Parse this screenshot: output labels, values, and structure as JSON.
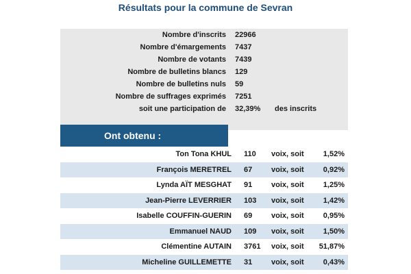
{
  "header": {
    "title": "Résultats pour la commune de Sevran"
  },
  "stats": {
    "rows": [
      {
        "label": "Nombre d'inscrits",
        "value": "22966",
        "suffix": ""
      },
      {
        "label": "Nombre d'émargements",
        "value": "7437",
        "suffix": ""
      },
      {
        "label": "Nombre de votants",
        "value": "7439",
        "suffix": ""
      },
      {
        "label": "Nombre de bulletins blancs",
        "value": "129",
        "suffix": ""
      },
      {
        "label": "Nombre de bulletins nuls",
        "value": "59",
        "suffix": ""
      },
      {
        "label": "Nombre de suffrages exprimés",
        "value": "7251",
        "suffix": ""
      },
      {
        "label": "soit une participation de",
        "value": "32,39%",
        "suffix": "des inscrits"
      }
    ]
  },
  "results": {
    "header": "Ont obtenu :",
    "rows": [
      {
        "name": "Ton Tona KHUL",
        "votes": "110",
        "word": "voix, soit",
        "pct": "1,52%"
      },
      {
        "name": "François MERETREL",
        "votes": "67",
        "word": "voix, soit",
        "pct": "0,92%"
      },
      {
        "name": "Lynda AÏT MESGHAT",
        "votes": "91",
        "word": "voix, soit",
        "pct": "1,25%"
      },
      {
        "name": "Jean-Pierre LEVERRIER",
        "votes": "103",
        "word": "voix, soit",
        "pct": "1,42%"
      },
      {
        "name": "Isabelle COUFFIN-GUERIN",
        "votes": "69",
        "word": "voix, soit",
        "pct": "0,95%"
      },
      {
        "name": "Emmanuel NAUD",
        "votes": "109",
        "word": "voix, soit",
        "pct": "1,50%"
      },
      {
        "name": "Clémentine AUTAIN",
        "votes": "3761",
        "word": "voix, soit",
        "pct": "51,87%"
      },
      {
        "name": "Micheline GUILLEMETTE",
        "votes": "31",
        "word": "voix, soit",
        "pct": "0,43%"
      }
    ]
  },
  "colors": {
    "title": "#1f4e79",
    "header_bg": "#1f5a87",
    "stripe": "#d7e3ee",
    "panel": "#e8e8e8"
  }
}
